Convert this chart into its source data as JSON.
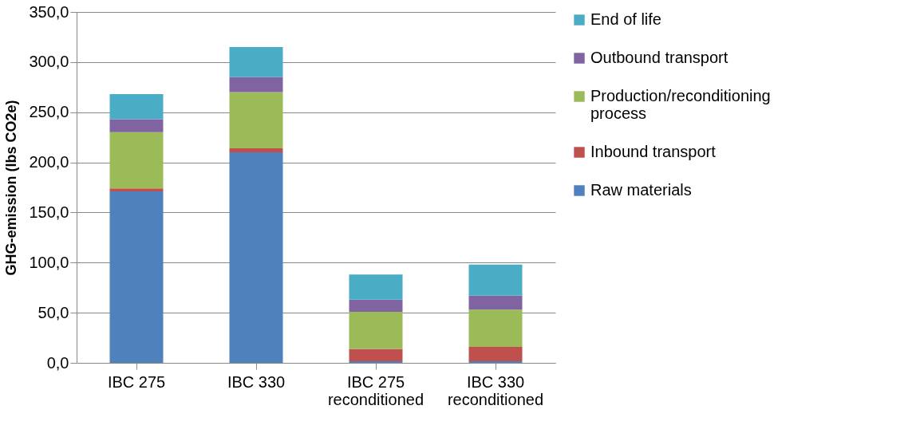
{
  "chart_data": {
    "type": "bar",
    "stacked": true,
    "ylabel": "GHG-emission (lbs CO2e)",
    "categories": [
      "IBC 275",
      "IBC 330",
      "IBC 275 reconditioned",
      "IBC 330 reconditioned"
    ],
    "series": [
      {
        "name": "Raw materials",
        "color": "#4f81bd",
        "values": [
          171,
          210,
          1.5,
          1.5
        ]
      },
      {
        "name": "Inbound transport",
        "color": "#c0504d",
        "values": [
          3,
          4,
          12.5,
          14.5
        ]
      },
      {
        "name": "Production/reconditioning process",
        "color": "#9bbb59",
        "values": [
          56,
          56,
          37,
          37
        ]
      },
      {
        "name": "Outbound transport",
        "color": "#8064a2",
        "values": [
          13,
          15,
          12,
          14
        ]
      },
      {
        "name": "End of life",
        "color": "#4bacc6",
        "values": [
          25,
          30,
          25,
          31
        ]
      }
    ],
    "ylim": [
      0,
      350
    ],
    "yticks": [
      {
        "value": 0,
        "label": "0,0"
      },
      {
        "value": 50,
        "label": "50,0"
      },
      {
        "value": 100,
        "label": "100,0"
      },
      {
        "value": 150,
        "label": "150,0"
      },
      {
        "value": 200,
        "label": "200,0"
      },
      {
        "value": 250,
        "label": "250,0"
      },
      {
        "value": 300,
        "label": "300,0"
      },
      {
        "value": 350,
        "label": "350,0"
      }
    ],
    "grid": "y",
    "legend": "right"
  }
}
